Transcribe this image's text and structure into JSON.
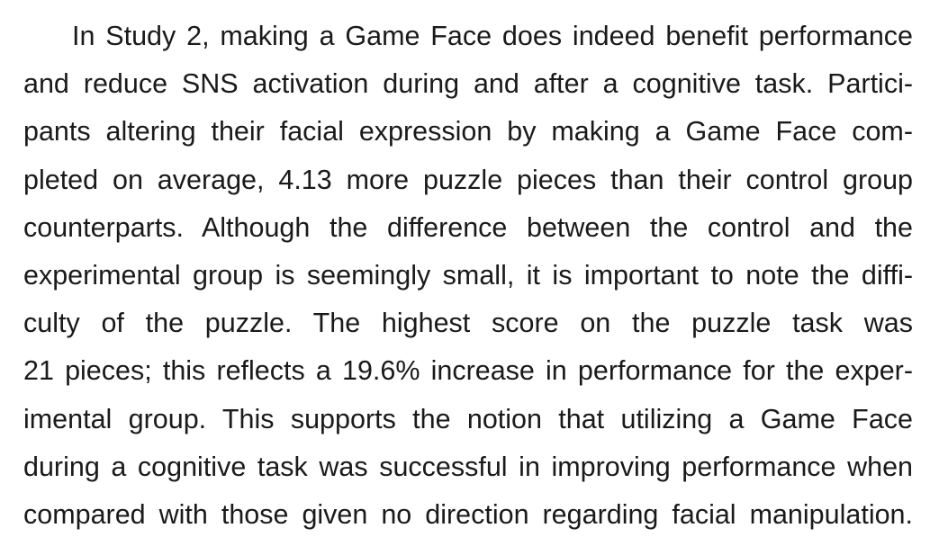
{
  "paragraph": {
    "lines": [
      "In Study 2, making a Game Face does indeed benefit performance",
      "and reduce SNS activation during and after a cognitive task. Partici-",
      "pants altering their facial expression by making a Game Face com-",
      "pleted on average, 4.13 more puzzle pieces than their control group",
      "counterparts. Although the difference between the control and the",
      "experimental group is seemingly small, it is important to note the diffi-",
      "culty of the puzzle. The highest score on the puzzle task was",
      "21 pieces; this reflects a 19.6% increase in performance for the exper-",
      "imental group. This supports the notion that utilizing a Game Face",
      "during a cognitive task was successful in improving performance when",
      "compared with those given no direction regarding facial manipulation."
    ]
  }
}
